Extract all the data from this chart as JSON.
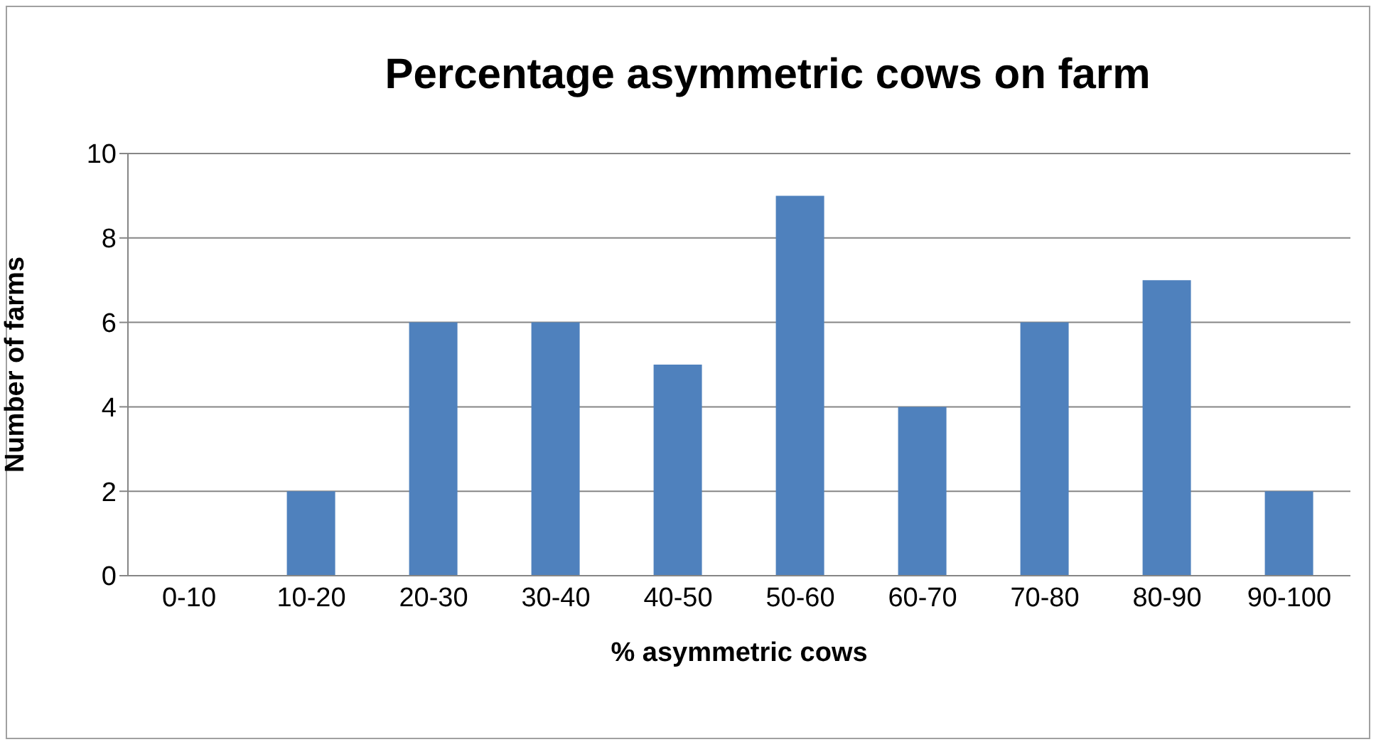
{
  "chart_data": {
    "type": "bar",
    "title": "Percentage asymmetric cows on farm",
    "xlabel": "% asymmetric cows",
    "ylabel": "Number of farms",
    "categories": [
      "0-10",
      "10-20",
      "20-30",
      "30-40",
      "40-50",
      "50-60",
      "60-70",
      "70-80",
      "80-90",
      "90-100"
    ],
    "values": [
      0,
      2,
      6,
      6,
      5,
      9,
      4,
      6,
      7,
      2
    ],
    "color": "#4f81bd",
    "ylim": [
      0,
      10
    ],
    "yticks": [
      0,
      2,
      4,
      6,
      8,
      10
    ],
    "grid": "y"
  }
}
